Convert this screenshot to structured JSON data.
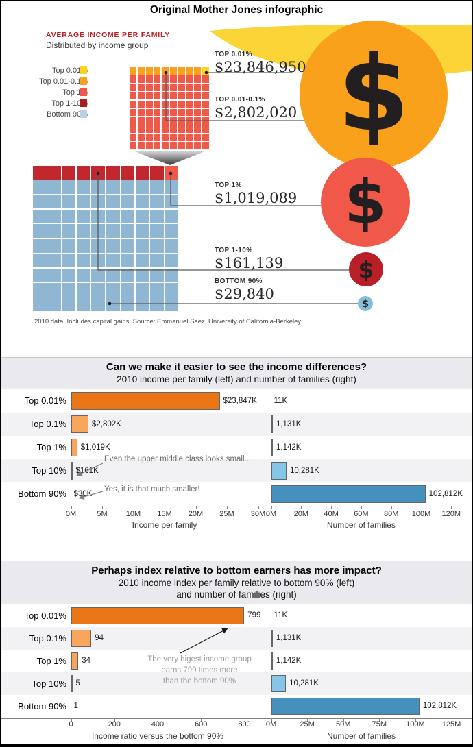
{
  "page_title": "Original Mother Jones infographic",
  "infographic": {
    "heading": "AVERAGE INCOME PER FAMILY",
    "subheading": "Distributed by income group",
    "legend": [
      {
        "label": "Top 0.01%",
        "color": "#FFD21E"
      },
      {
        "label": "Top 0.01-0.1%",
        "color": "#F9A11B"
      },
      {
        "label": "Top 1%",
        "color": "#F0594A"
      },
      {
        "label": "Top 1-10%",
        "color": "#A81D22"
      },
      {
        "label": "Bottom 90%",
        "color": "#BCD1DF"
      }
    ],
    "callouts": [
      {
        "label": "TOP 0.01%",
        "value": "$23,846,950"
      },
      {
        "label": "TOP 0.01-0.1%",
        "value": "$2,802,020"
      },
      {
        "label": "TOP 1%",
        "value": "$1,019,089"
      },
      {
        "label": "TOP 1-10%",
        "value": "$161,139"
      },
      {
        "label": "BOTTOM 90%",
        "value": "$29,840"
      }
    ],
    "dollar_icon_glyph": "$",
    "circle_colors": [
      "#F9A11B",
      "#F0594A",
      "#B81F26",
      "#85BEDC"
    ],
    "yellow_shape_color": "#FBD437",
    "grid_colors": {
      "yellow": "#FFD21E",
      "orange": "#F9A11B",
      "salmon": "#F0594A",
      "dark_red": "#C1272D",
      "light_blue": "#8FB6D3"
    },
    "footnote": "2010 data. Includes capital gains. Source: Emmanuel Saez, University of California-Berkeley"
  },
  "chart_data": [
    {
      "type": "bar",
      "title": "Can we make it easier to see the income differences?",
      "subtitle_lines": [
        "2010 income per family (left) and number of families (right)"
      ],
      "categories": [
        "Top 0.01%",
        "Top 0.1%",
        "Top 1%",
        "Top 10%",
        "Bottom 90%"
      ],
      "row_band_colors": [
        "#FFFFFF",
        "#F2F2F4",
        "#FFFFFF",
        "#F2F2F4",
        "#FFFFFF"
      ],
      "series": [
        {
          "name": "Income per family",
          "values": [
            23.847,
            2.802,
            1.019,
            0.161,
            0.03
          ],
          "bar_labels": [
            "$23,847K",
            "$2,802K",
            "$1,019K",
            "$161K",
            "$30K"
          ],
          "bar_colors": [
            "#E97514",
            "#F9A55C",
            "#F9A55C",
            "#85C6E6",
            "#4590BC"
          ],
          "axis": {
            "ticks": [
              "0M",
              "5M",
              "10M",
              "15M",
              "20M",
              "25M",
              "30M"
            ],
            "max": 30,
            "title": "Income per family"
          }
        },
        {
          "name": "Number of families",
          "values": [
            0.011,
            1.131,
            1.142,
            10.281,
            102.812
          ],
          "bar_labels": [
            "11K",
            "1,131K",
            "1,142K",
            "10,281K",
            "102,812K"
          ],
          "bar_colors": [
            "#9A9A9A",
            "#F9A55C",
            "#F9A55C",
            "#85C6E6",
            "#4590BC"
          ],
          "axis": {
            "ticks": [
              "0M",
              "20M",
              "40M",
              "60M",
              "80M",
              "100M",
              "120M"
            ],
            "max": 120,
            "title": "Number of families"
          }
        }
      ],
      "annotations": [
        {
          "text": "Even the upper middle class looks small..."
        },
        {
          "text": "Yes, it is that much smaller!"
        }
      ]
    },
    {
      "type": "bar",
      "title": "Perhaps index relative to bottom earners has more impact?",
      "subtitle_lines": [
        "2010 income index per family relative to bottom 90% (left)",
        "and number of families (right)"
      ],
      "categories": [
        "Top 0.01%",
        "Top 0.1%",
        "Top 1%",
        "Top 10%",
        "Bottom 90%"
      ],
      "row_band_colors": [
        "#FFFFFF",
        "#F2F2F4",
        "#FFFFFF",
        "#F2F2F4",
        "#FFFFFF"
      ],
      "series": [
        {
          "name": "Income ratio versus the bottom 90%",
          "values": [
            799,
            94,
            34,
            5,
            1
          ],
          "bar_labels": [
            "799",
            "94",
            "34",
            "5",
            "1"
          ],
          "bar_colors": [
            "#E97514",
            "#F9A55C",
            "#F9A55C",
            "#85C6E6",
            "#4590BC"
          ],
          "axis": {
            "ticks": [
              "0",
              "200",
              "400",
              "600",
              "800"
            ],
            "max": 800,
            "title": "Income ratio versus the bottom 90%"
          }
        },
        {
          "name": "Number of families",
          "values": [
            0.011,
            1.131,
            1.142,
            10.281,
            102.812
          ],
          "bar_labels": [
            "11K",
            "1,131K",
            "1,142K",
            "10,281K",
            "102,812K"
          ],
          "bar_colors": [
            "#9A9A9A",
            "#F9A55C",
            "#F9A55C",
            "#85C6E6",
            "#4590BC"
          ],
          "axis": {
            "ticks": [
              "0M",
              "25M",
              "50M",
              "75M",
              "100M",
              "125M"
            ],
            "max": 125,
            "title": "Number of families"
          }
        }
      ],
      "annotations": [
        {
          "text_lines": [
            "The very higest income group",
            "earns 799 times more",
            "than the bottom 90%"
          ]
        }
      ]
    }
  ]
}
